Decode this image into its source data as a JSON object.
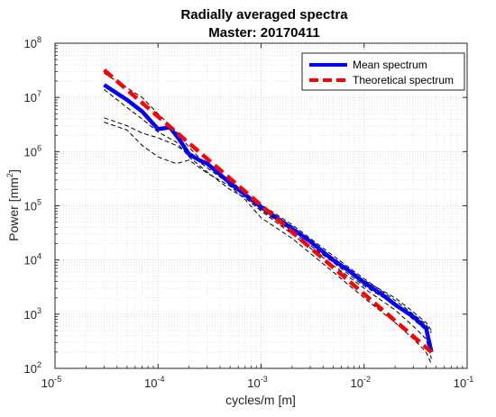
{
  "chart_data": {
    "type": "line",
    "title": "Radially averaged spectra",
    "subtitle": "Master: 20170411",
    "xlabel": "cycles/m [m]",
    "ylabel": "Power [mm",
    "ylabel_sup": "2",
    "ylabel_tail": "]",
    "xscale": "log",
    "yscale": "log",
    "xlim": [
      1e-05,
      0.1
    ],
    "ylim": [
      100,
      100000000
    ],
    "grid": true,
    "minor_grid": true,
    "legend_position": "top-right",
    "x_ticks": [
      {
        "base": "10",
        "exp": "-5",
        "value": 1e-05
      },
      {
        "base": "10",
        "exp": "-4",
        "value": 0.0001
      },
      {
        "base": "10",
        "exp": "-3",
        "value": 0.001
      },
      {
        "base": "10",
        "exp": "-2",
        "value": 0.01
      },
      {
        "base": "10",
        "exp": "-1",
        "value": 0.1
      }
    ],
    "y_ticks": [
      {
        "base": "10",
        "exp": "2",
        "value": 100
      },
      {
        "base": "10",
        "exp": "3",
        "value": 1000
      },
      {
        "base": "10",
        "exp": "4",
        "value": 10000
      },
      {
        "base": "10",
        "exp": "5",
        "value": 100000
      },
      {
        "base": "10",
        "exp": "6",
        "value": 1000000
      },
      {
        "base": "10",
        "exp": "7",
        "value": 10000000
      },
      {
        "base": "10",
        "exp": "8",
        "value": 100000000
      }
    ],
    "series": [
      {
        "name": "Mean spectrum",
        "color": "#0000ff",
        "style": "solid-thick",
        "x": [
          3e-05,
          5e-05,
          7e-05,
          0.0001,
          0.00013,
          0.00016,
          0.0002,
          0.00025,
          0.0003,
          0.0004,
          0.0005,
          0.0007,
          0.001,
          0.0015,
          0.002,
          0.003,
          0.005,
          0.007,
          0.01,
          0.015,
          0.02,
          0.03,
          0.04,
          0.045
        ],
        "y": [
          17000000,
          9000000,
          5500000,
          2600000,
          2800000,
          1700000,
          900000,
          700000,
          600000,
          380000,
          260000,
          160000,
          95000,
          55000,
          38000,
          22000,
          10000,
          6500,
          3800,
          2300,
          1500,
          900,
          550,
          200
        ]
      },
      {
        "name": "Theoretical spectrum",
        "color": "#ff0000",
        "style": "dashed-thick",
        "x": [
          3e-05,
          0.045
        ],
        "y": [
          32000000,
          200
        ]
      },
      {
        "name": "",
        "color": "#000000",
        "style": "dashed-thin",
        "x": [
          3e-05,
          5e-05,
          7e-05,
          0.0001,
          0.00015,
          0.0002,
          0.0003,
          0.0005,
          0.0007,
          0.001,
          0.002,
          0.005,
          0.01,
          0.02,
          0.03,
          0.04,
          0.045
        ],
        "y": [
          28000000,
          15000000,
          10000000,
          5000000,
          2400000,
          1200000,
          550000,
          300000,
          170000,
          105000,
          45000,
          12000,
          4500,
          1800,
          1000,
          650,
          450
        ]
      },
      {
        "name": "",
        "color": "#000000",
        "style": "dashed-thin",
        "x": [
          3e-05,
          5e-05,
          7e-05,
          0.0001,
          0.00015,
          0.0002,
          0.0003,
          0.0005,
          0.0007,
          0.001,
          0.002,
          0.005,
          0.01,
          0.02,
          0.03,
          0.04,
          0.045
        ],
        "y": [
          14000000,
          6500000,
          4000000,
          2300000,
          1500000,
          800000,
          420000,
          200000,
          140000,
          80000,
          30000,
          8000,
          3000,
          1200,
          600,
          350,
          150
        ]
      },
      {
        "name": "",
        "color": "#000000",
        "style": "dashed-thin",
        "x": [
          3e-05,
          5e-05,
          7e-05,
          0.0001,
          0.00015,
          0.0002,
          0.0003,
          0.0005,
          0.0007,
          0.001,
          0.002,
          0.005,
          0.01,
          0.02,
          0.03,
          0.04,
          0.045
        ],
        "y": [
          4200000,
          3000000,
          2200000,
          1800000,
          1300000,
          900000,
          500000,
          250000,
          150000,
          85000,
          33000,
          9000,
          3300,
          1500,
          800,
          500,
          250
        ]
      },
      {
        "name": "",
        "color": "#000000",
        "style": "dashed-thin",
        "x": [
          3e-05,
          5e-05,
          7e-05,
          0.0001,
          0.00015,
          0.0002,
          0.0003,
          0.0005,
          0.0007,
          0.001,
          0.002,
          0.005,
          0.01,
          0.02,
          0.03,
          0.04,
          0.045
        ],
        "y": [
          3500000,
          2500000,
          1300000,
          800000,
          600000,
          700000,
          400000,
          230000,
          130000,
          60000,
          25000,
          6000,
          2000,
          700,
          350,
          200,
          120
        ]
      },
      {
        "name": "",
        "color": "#000000",
        "style": "dashed-thin",
        "x": [
          0.0005,
          0.0007,
          0.001,
          0.002,
          0.005,
          0.01,
          0.02,
          0.03,
          0.04,
          0.045
        ],
        "y": [
          250000,
          170000,
          100000,
          42000,
          11000,
          4200,
          2000,
          1100,
          700,
          500
        ]
      }
    ]
  }
}
